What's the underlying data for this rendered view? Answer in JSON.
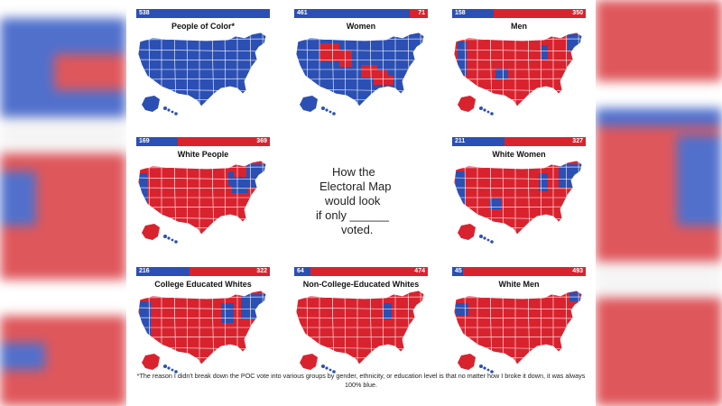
{
  "colors": {
    "blue": "#2b4fb3",
    "red": "#d8232f"
  },
  "center_text": {
    "line1": "How the",
    "line2": "Electoral Map",
    "line3": "would look",
    "line4": "if only ______",
    "line5": "voted."
  },
  "maps": [
    {
      "title": "People of Color*",
      "blue": 538,
      "red": null,
      "blue_label": "538",
      "red_label": ""
    },
    {
      "title": "Women",
      "blue": 461,
      "red": 71,
      "blue_label": "461",
      "red_label": "71"
    },
    {
      "title": "Men",
      "blue": 158,
      "red": 350,
      "blue_label": "158",
      "red_label": "350"
    },
    {
      "title": "White People",
      "blue": 169,
      "red": 369,
      "blue_label": "169",
      "red_label": "369"
    },
    {
      "title": "White Women",
      "blue": 211,
      "red": 327,
      "blue_label": "211",
      "red_label": "327"
    },
    {
      "title": "College Educated Whites",
      "blue": 216,
      "red": 322,
      "blue_label": "216",
      "red_label": "322"
    },
    {
      "title": "Non-College-Educated Whites",
      "blue": 64,
      "red": 474,
      "blue_label": "64",
      "red_label": "474"
    },
    {
      "title": "White Men",
      "blue": 45,
      "red": 493,
      "blue_label": "45",
      "red_label": "493"
    }
  ],
  "footnote": "*The reason I didn't break down the POC vote into various groups by gender, ethnicity, or education level is that no matter how I broke it down, it was always 100% blue."
}
